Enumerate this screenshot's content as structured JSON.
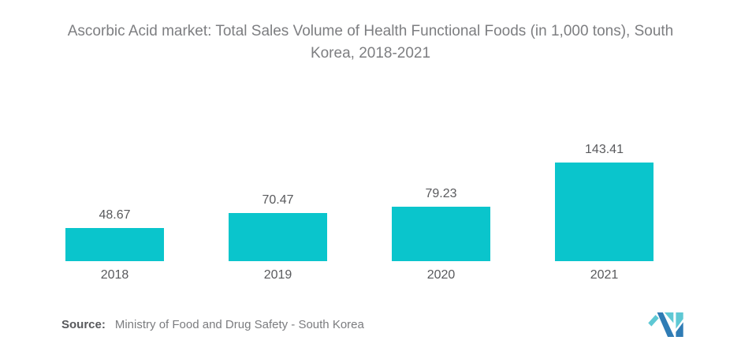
{
  "title": {
    "line1": "Ascorbic Acid market: Total Sales Volume of Health Functional Foods (in 1,000 tons), South",
    "line2": "Korea, 2018-2021"
  },
  "chart_data": {
    "type": "bar",
    "title": "Ascorbic Acid market: Total Sales Volume of Health Functional Foods (in 1,000 tons), South Korea, 2018-2021",
    "categories": [
      "2018",
      "2019",
      "2020",
      "2021"
    ],
    "values": [
      48.67,
      70.47,
      79.23,
      143.41
    ],
    "value_labels": [
      "48.67",
      "70.47",
      "79.23",
      "143.41"
    ],
    "xlabel": "",
    "ylabel": "",
    "axes_visible": false,
    "grid": false,
    "legend": false,
    "data_labels": true,
    "bar_color": "#0ac5cc"
  },
  "source": {
    "label": "Source:",
    "text": "Ministry of Food and Drug Safety - South Korea"
  },
  "logo": {
    "name": "mordor-intelligence-logo-mark",
    "teal": "#5ec8d4",
    "blue": "#2f7cb5"
  },
  "colors": {
    "background": "#ffffff",
    "bar": "#0ac5cc",
    "title_text": "#7d7e81",
    "value_text": "#595a5d",
    "category_text": "#595a5d",
    "source_text": "#7b7c7f"
  }
}
